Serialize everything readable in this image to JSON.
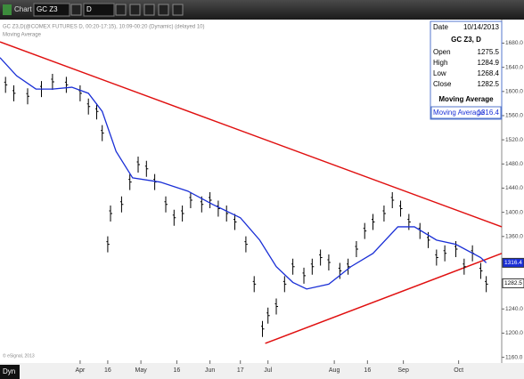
{
  "toolbar": {
    "title": "Chart",
    "symbol": "GC Z3",
    "interval": "D"
  },
  "chart_data": {
    "type": "ohlc",
    "title": "GC Z3,D(@COMEX FUTURES D, 00:20-17:15), 10:09-00:20 (Dynamic) (delayed 10)",
    "subtitle": "Moving Average",
    "color": "#000000",
    "x": [
      2,
      5,
      10,
      15,
      19,
      24,
      29,
      32,
      35,
      37,
      39,
      40,
      44,
      47,
      50,
      53,
      56,
      60,
      63,
      66,
      69,
      73,
      76,
      79,
      82,
      85,
      89,
      92,
      95,
      97,
      100,
      103,
      106,
      110,
      113,
      116,
      119,
      123,
      126,
      129,
      132,
      135,
      139,
      142,
      145,
      148,
      152,
      155,
      158,
      161,
      165,
      168,
      171,
      174,
      176
    ],
    "values": [
      1611,
      1597,
      1592,
      1604,
      1616,
      1611,
      1597,
      1575,
      1567,
      1531,
      1347,
      1398,
      1413,
      1450,
      1479,
      1472,
      1450,
      1413,
      1391,
      1398,
      1420,
      1413,
      1420,
      1406,
      1398,
      1384,
      1347,
      1281,
      1207,
      1229,
      1244,
      1281,
      1310,
      1295,
      1310,
      1325,
      1317,
      1303,
      1310,
      1339,
      1369,
      1384,
      1398,
      1420,
      1406,
      1384,
      1369,
      1354,
      1325,
      1332,
      1339,
      1310,
      1332,
      1303,
      1281
    ],
    "series": [
      {
        "name": "Moving Average",
        "color": "#1a2fd6",
        "x": [
          0,
          6,
          13,
          19,
          26,
          32,
          37,
          42,
          48,
          58,
          68,
          77,
          87,
          94,
          100,
          106,
          111,
          119,
          127,
          135,
          144,
          150,
          158,
          165,
          174,
          176
        ],
        "values": [
          1656,
          1626,
          1604,
          1604,
          1607,
          1597,
          1567,
          1501,
          1457,
          1450,
          1435,
          1413,
          1391,
          1354,
          1310,
          1284,
          1273,
          1281,
          1310,
          1332,
          1376,
          1376,
          1354,
          1347,
          1325,
          1316.4
        ]
      }
    ],
    "trendlines": [
      {
        "color": "#e01010",
        "x": [
          0,
          181.6
        ],
        "y": [
          1682,
          1376
        ]
      },
      {
        "color": "#e01010",
        "x": [
          96,
          181.6
        ],
        "y": [
          1183,
          1332
        ]
      }
    ],
    "markers": [
      {
        "value": 1316.4,
        "color": "#1a2fd6"
      },
      {
        "value": 1282.5,
        "color": "#ffffff"
      }
    ],
    "xlim": [
      0,
      181.6
    ],
    "xticks": [
      {
        "value": 29,
        "label": "Apr"
      },
      {
        "value": 39,
        "label": "16"
      },
      {
        "value": 51,
        "label": "May"
      },
      {
        "value": 64,
        "label": "16"
      },
      {
        "value": 76,
        "label": "Jun"
      },
      {
        "value": 87,
        "label": "17"
      },
      {
        "value": 97,
        "label": "Jul"
      },
      {
        "value": 121,
        "label": "Aug"
      },
      {
        "value": 133,
        "label": "16"
      },
      {
        "value": 146,
        "label": "Sep"
      },
      {
        "value": 166,
        "label": "Oct"
      }
    ],
    "ylim": [
      1155,
      1719
    ],
    "yticks": [
      {
        "value": 1680,
        "label": "1680.0"
      },
      {
        "value": 1640,
        "label": "1640.0"
      },
      {
        "value": 1600,
        "label": "1600.0"
      },
      {
        "value": 1560,
        "label": "1560.0"
      },
      {
        "value": 1520,
        "label": "1520.0"
      },
      {
        "value": 1480,
        "label": "1480.0"
      },
      {
        "value": 1440,
        "label": "1440.0"
      },
      {
        "value": 1400,
        "label": "1400.0"
      },
      {
        "value": 1360,
        "label": "1360.0"
      },
      {
        "value": 1280,
        "label": "1280.0"
      },
      {
        "value": 1240,
        "label": "1240.0"
      },
      {
        "value": 1200,
        "label": "1200.0"
      },
      {
        "value": 1160,
        "label": "1160.0"
      }
    ],
    "grid": false
  },
  "info_box": {
    "date_label": "Date",
    "date": "10/14/2013",
    "symbol": "GC Z3, D",
    "rows": [
      [
        "Open",
        "1275.5"
      ],
      [
        "High",
        "1284.9"
      ],
      [
        "Low",
        "1268.4"
      ],
      [
        "Close",
        "1282.5"
      ]
    ],
    "study": "Moving Average",
    "study_row": [
      "Moving Average",
      "1316.4"
    ]
  },
  "footer": {
    "mode": "Dyn",
    "copyright": "© eSignal, 2013"
  }
}
